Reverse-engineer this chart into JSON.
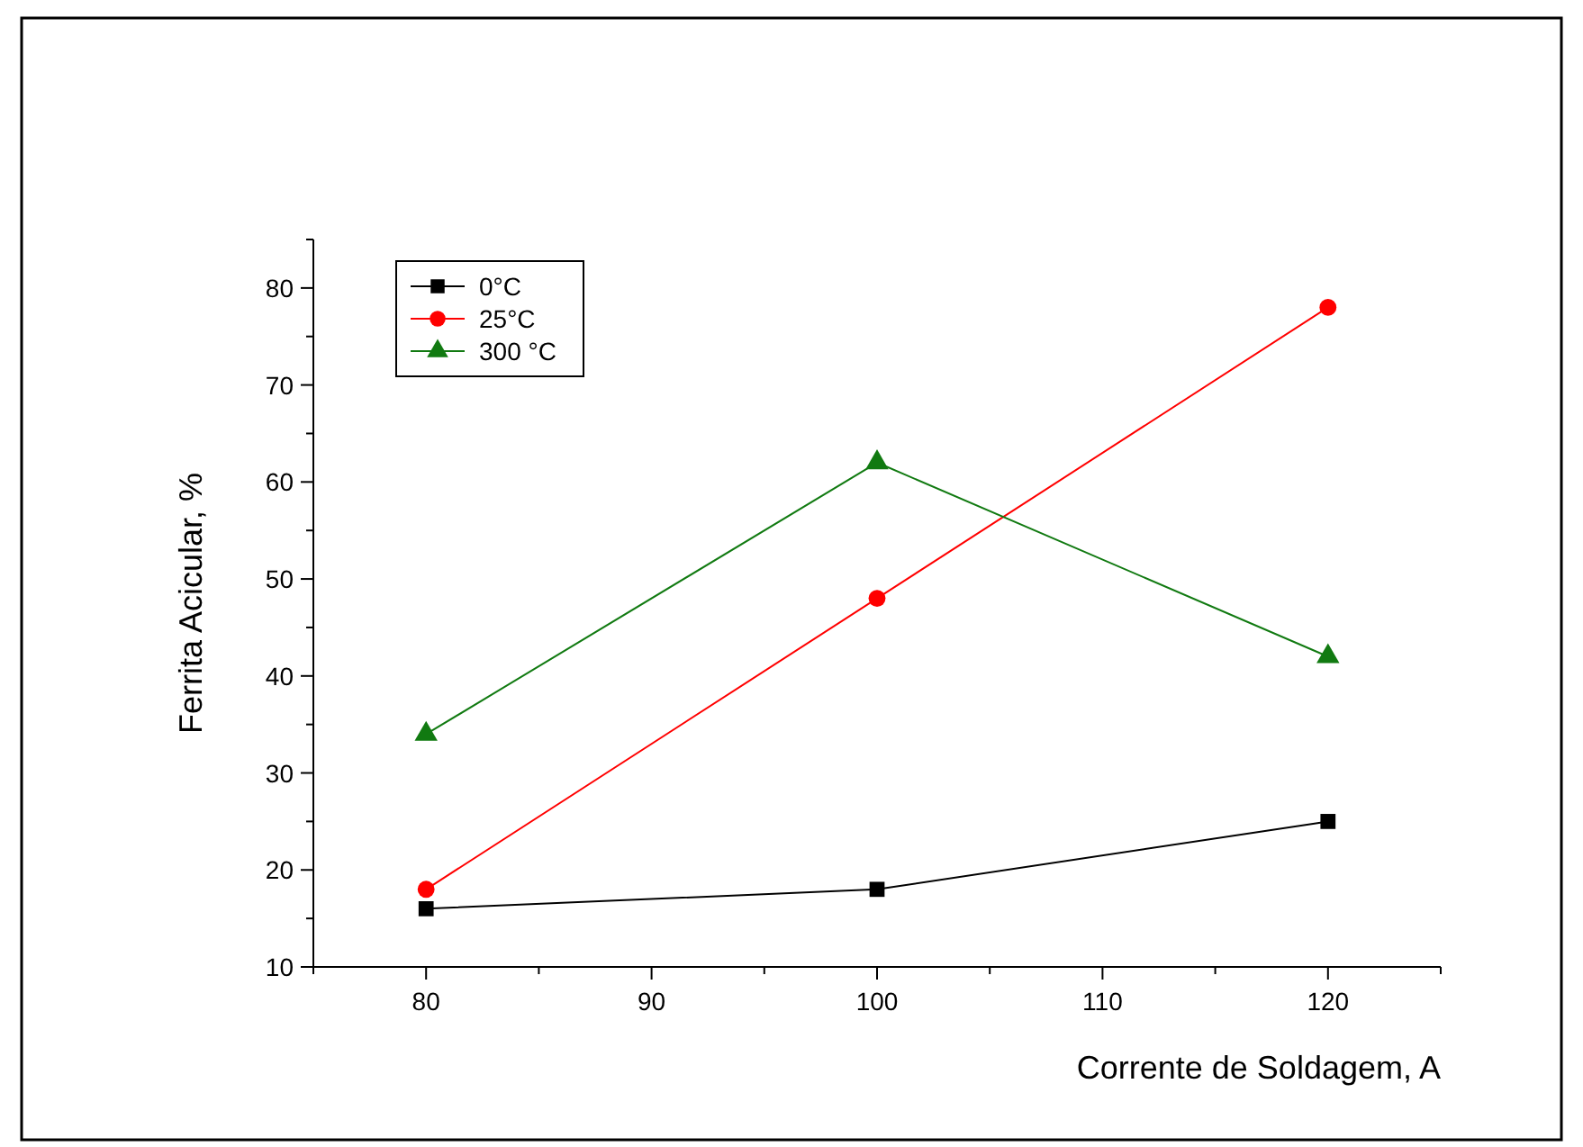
{
  "chart_data": {
    "type": "line",
    "xlabel": "Corrente de Soldagem, A",
    "ylabel": "Ferrita Acicular, %",
    "x": [
      80,
      100,
      120
    ],
    "series": [
      {
        "name": "0°C",
        "color": "#000000",
        "marker": "square",
        "values": [
          16,
          18,
          25
        ]
      },
      {
        "name": "25°C",
        "color": "#ff0000",
        "marker": "circle",
        "values": [
          18,
          48,
          78
        ]
      },
      {
        "name": "300 °C",
        "color": "#117a11",
        "marker": "triangle",
        "values": [
          34,
          62,
          42
        ]
      }
    ],
    "xlim": [
      75,
      125
    ],
    "xticks": [
      {
        "value": 75,
        "label": null
      },
      80,
      {
        "value": 85,
        "label": null
      },
      90,
      {
        "value": 95,
        "label": null
      },
      100,
      {
        "value": 105,
        "label": null
      },
      110,
      {
        "value": 115,
        "label": null
      },
      120,
      {
        "value": 125,
        "label": null
      }
    ],
    "ylim": [
      10,
      85
    ],
    "yticks": [
      10,
      {
        "value": 15,
        "label": null
      },
      20,
      {
        "value": 25,
        "label": null
      },
      30,
      {
        "value": 35,
        "label": null
      },
      40,
      {
        "value": 45,
        "label": null
      },
      50,
      {
        "value": 55,
        "label": null
      },
      60,
      {
        "value": 65,
        "label": null
      },
      70,
      {
        "value": 75,
        "label": null
      },
      80,
      {
        "value": 85,
        "label": null
      }
    ],
    "grid": false,
    "legend": "top left",
    "line_style": "solid"
  }
}
